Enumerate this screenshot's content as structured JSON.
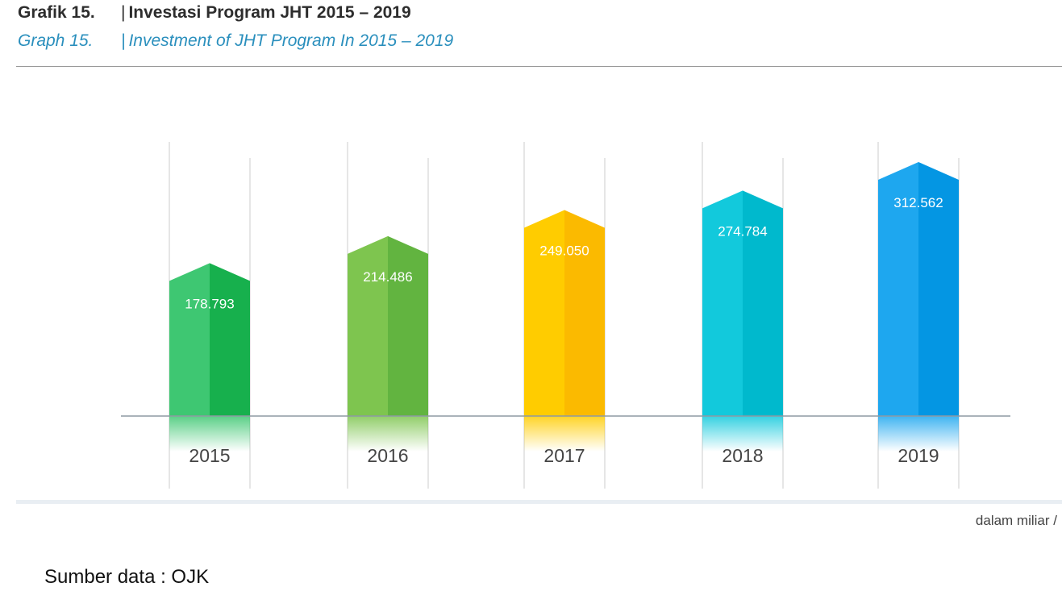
{
  "header": {
    "label_id": "Grafik 15.",
    "title_id": "Investasi Program JHT 2015 – 2019",
    "label_en": "Graph 15.",
    "title_en": "Investment of JHT Program In 2015 – 2019",
    "separator": "|"
  },
  "unit_note": "dalam miliar /",
  "source_note": "Sumber data : OJK",
  "chart_data": {
    "type": "bar",
    "title": "Investasi Program JHT 2015 – 2019",
    "categories": [
      "2015",
      "2016",
      "2017",
      "2018",
      "2019"
    ],
    "values": [
      178793,
      214486,
      249050,
      274784,
      312562
    ],
    "value_labels": [
      "178.793",
      "214.486",
      "249.050",
      "274.784",
      "312.562"
    ],
    "colors_left": [
      "#3ec772",
      "#7ec54f",
      "#ffcc00",
      "#12c9dc",
      "#1ea7ef"
    ],
    "colors_right": [
      "#17b04d",
      "#62b440",
      "#fbba00",
      "#00b9cd",
      "#0496e3"
    ],
    "ylim": [
      0,
      320000
    ],
    "grid": false,
    "legend": "none"
  }
}
